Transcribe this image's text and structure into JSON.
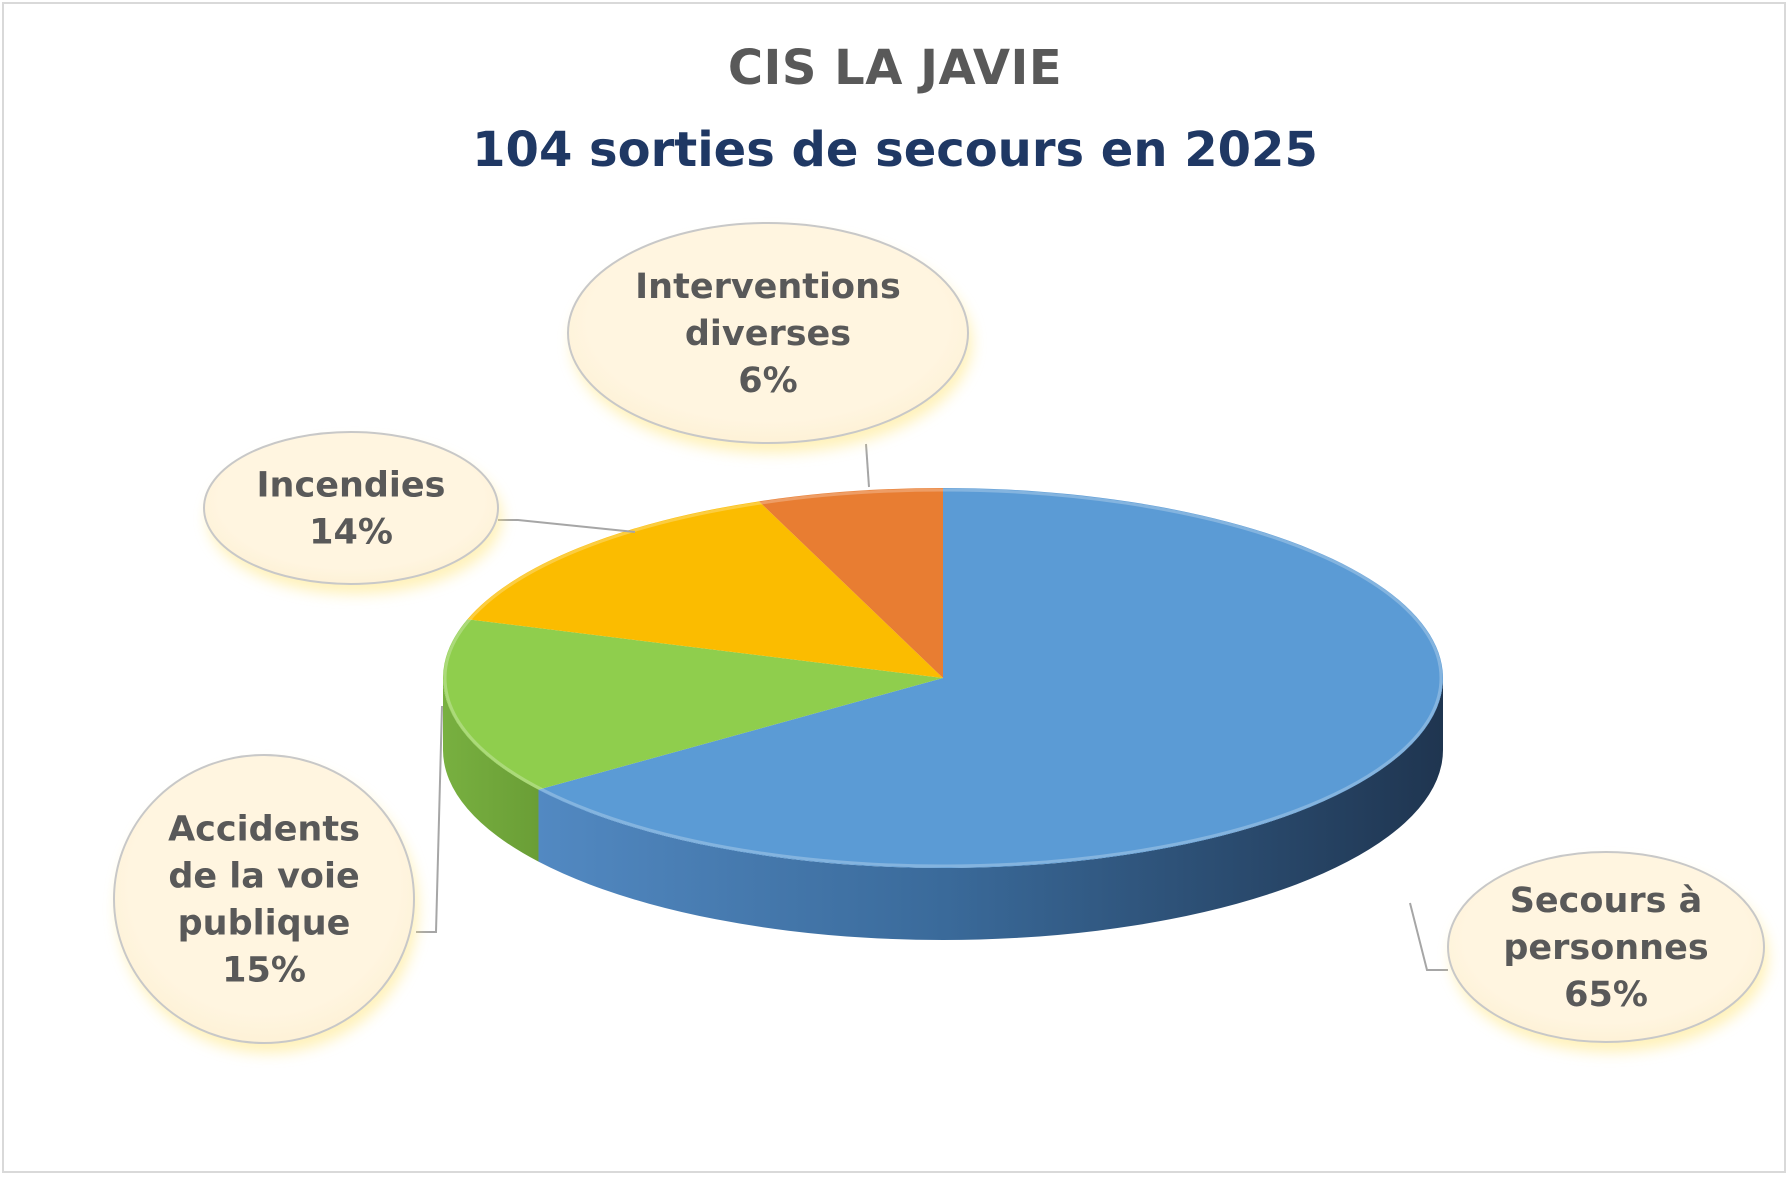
{
  "chart_data": {
    "type": "pie",
    "title": "CIS LA JAVIE",
    "subtitle": "104 sorties de secours en 2025",
    "slices": [
      {
        "label": [
          "Secours à",
          "personnes"
        ],
        "value": 65,
        "value_label": "65%",
        "color": "#5b9bd5"
      },
      {
        "label": [
          "Accidents",
          "de la voie",
          "publique"
        ],
        "value": 15,
        "value_label": "15%",
        "color": "#8fce4d"
      },
      {
        "label": [
          "Incendies"
        ],
        "value": 14,
        "value_label": "14%",
        "color": "#fbbc00"
      },
      {
        "label": [
          "Interventions",
          "diverses"
        ],
        "value": 6,
        "value_label": "6%",
        "color": "#e87d32"
      }
    ],
    "style": "3d",
    "legend": "none",
    "data_labels": "callout bubbles"
  }
}
